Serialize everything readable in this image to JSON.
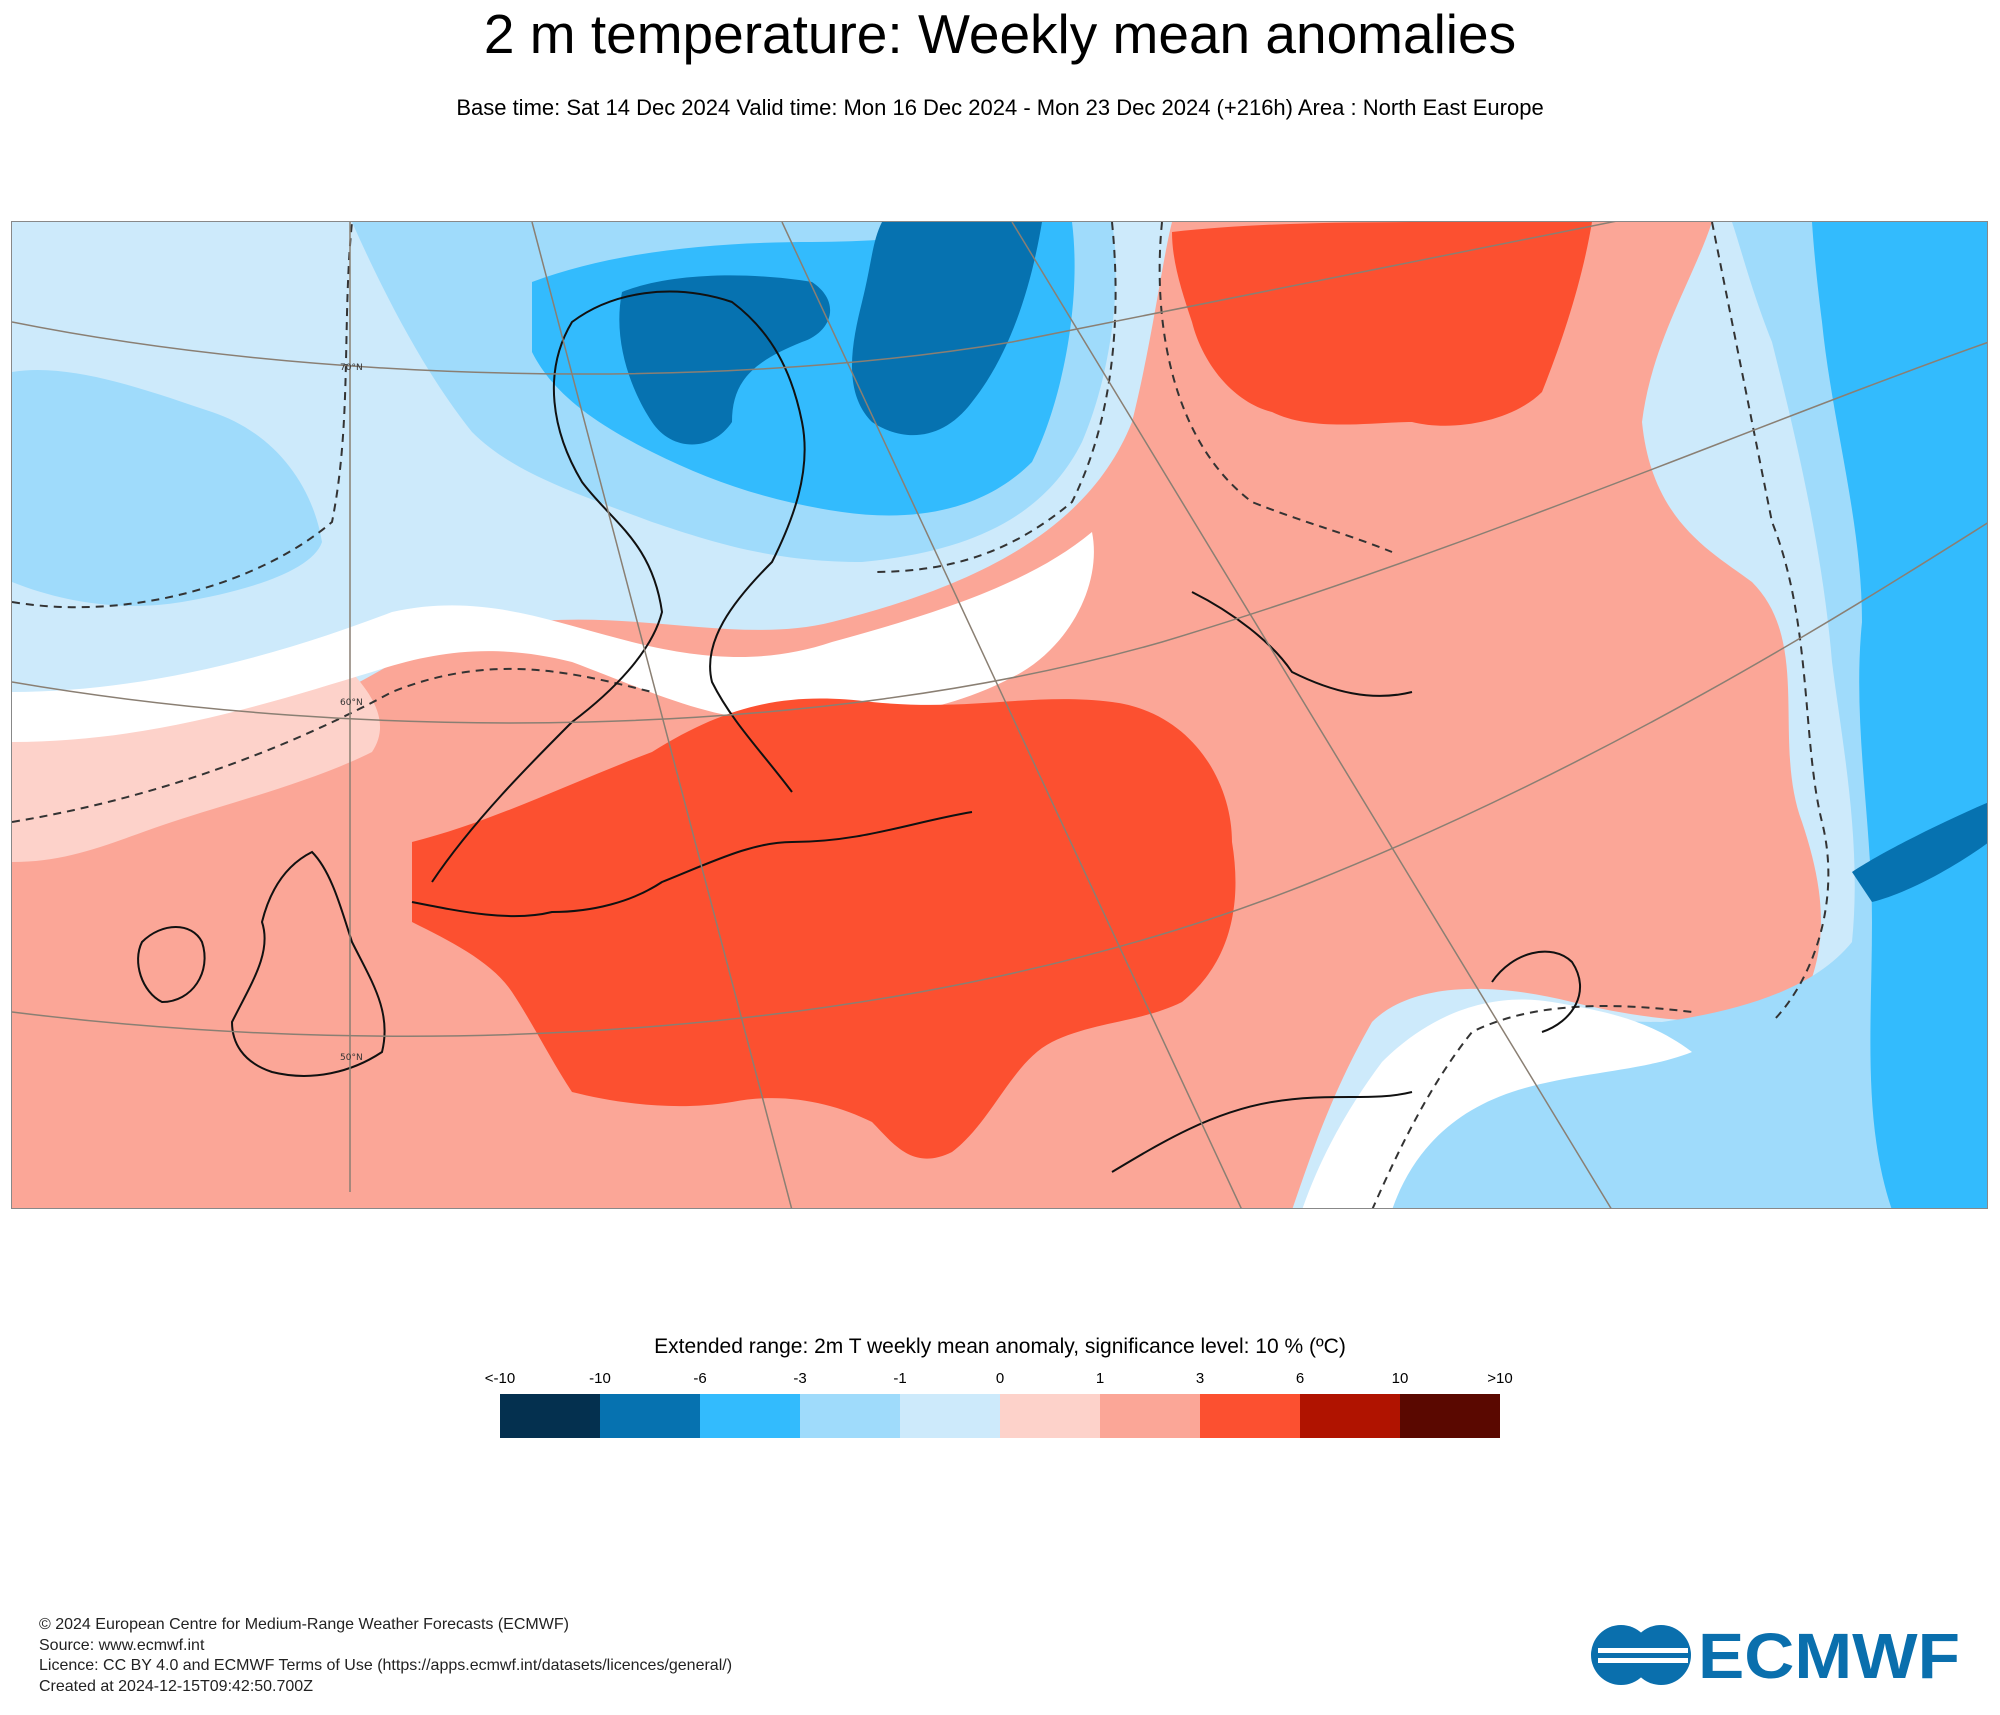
{
  "title": "2 m temperature: Weekly mean anomalies",
  "subtitle": "Base time: Sat 14 Dec 2024 Valid time: Mon 16 Dec 2024 - Mon 23 Dec 2024 (+216h) Area : North East Europe",
  "map": {
    "lat_labels": [
      "70°N",
      "60°N",
      "50°N"
    ]
  },
  "legend": {
    "title": "Extended range: 2m T weekly mean anomaly, significance level: 10 % (ºC)",
    "ticks": [
      "<-10",
      "-10",
      "-6",
      "-3",
      "-1",
      "0",
      "1",
      "3",
      "6",
      "10",
      ">10"
    ],
    "colors": [
      "#04304f",
      "#0672b0",
      "#33bbfd",
      "#9fdbfb",
      "#cdeafb",
      "#fdd2ca",
      "#fba697",
      "#fc5030",
      "#b01300",
      "#5a0800"
    ]
  },
  "footer": {
    "copyright": "© 2024 European Centre for Medium-Range Weather Forecasts (ECMWF)",
    "source": "Source: www.ecmwf.int",
    "licence": "Licence: CC BY 4.0 and ECMWF Terms of Use (https://apps.ecmwf.int/datasets/licences/general/)",
    "created": "Created at 2024-12-15T09:42:50.700Z"
  },
  "logo": {
    "text": "ECMWF",
    "color": "#0a6fad"
  }
}
